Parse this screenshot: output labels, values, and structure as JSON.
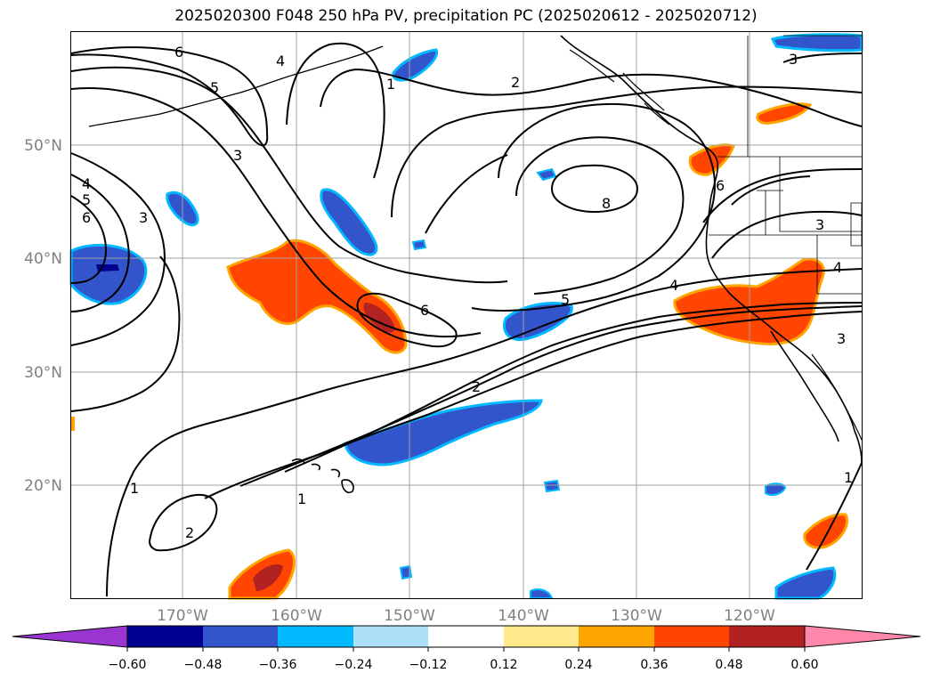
{
  "title": "2025020300 F048 250 hPa PV, precipitation PC (2025020612 - 2025020712)",
  "map": {
    "lat_labels": [
      {
        "text": "50°N",
        "lat": 50
      },
      {
        "text": "40°N",
        "lat": 40
      },
      {
        "text": "30°N",
        "lat": 30
      },
      {
        "text": "20°N",
        "lat": 20
      }
    ],
    "lon_labels": [
      {
        "text": "170°W",
        "lon": -170
      },
      {
        "text": "160°W",
        "lon": -160
      },
      {
        "text": "150°W",
        "lon": -150
      },
      {
        "text": "140°W",
        "lon": -140
      },
      {
        "text": "130°W",
        "lon": -130
      },
      {
        "text": "120°W",
        "lon": -120
      }
    ],
    "contour_labels": [
      "6",
      "4",
      "5",
      "1",
      "2",
      "3",
      "3",
      "4",
      "5",
      "6",
      "3",
      "8",
      "6",
      "5",
      "6",
      "4",
      "2",
      "1",
      "1",
      "2",
      "3",
      "4",
      "3",
      "1"
    ]
  },
  "colorbar": {
    "ticks": [
      "−0.60",
      "−0.48",
      "−0.36",
      "−0.24",
      "−0.12",
      "0.12",
      "0.24",
      "0.36",
      "0.48",
      "0.60"
    ],
    "colors": [
      "#9a35d2",
      "#000090",
      "#3355cc",
      "#00b8ff",
      "#aee0fa",
      "#ffffff",
      "#ffe98a",
      "#ffa500",
      "#ff4500",
      "#b22222",
      "#ff88aa"
    ]
  },
  "colors": {
    "land_outline": "#000000",
    "grid": "#a0a0a0",
    "contour": "#000000"
  }
}
